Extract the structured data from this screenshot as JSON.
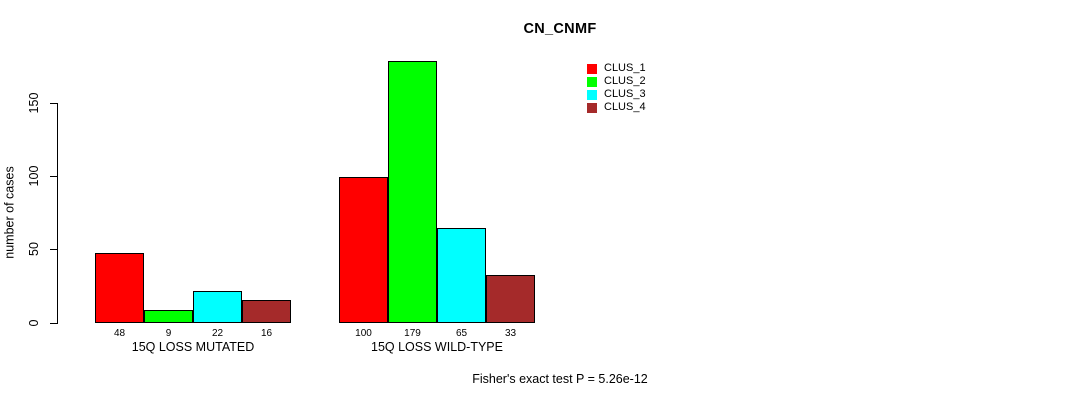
{
  "title": "CN_CNMF",
  "footer": "Fisher's exact test P = 5.26e-12",
  "y_axis": {
    "label": "number of cases",
    "ticks": [
      0,
      50,
      100,
      150
    ]
  },
  "legend": {
    "items": [
      {
        "label": "CLUS_1",
        "color": "#ff0000"
      },
      {
        "label": "CLUS_2",
        "color": "#00ff00"
      },
      {
        "label": "CLUS_3",
        "color": "#00ffff"
      },
      {
        "label": "CLUS_4",
        "color": "#a52a2a"
      }
    ]
  },
  "chart_data": {
    "type": "bar",
    "title": "CN_CNMF",
    "categories": [
      "15Q LOSS MUTATED",
      "15Q LOSS WILD-TYPE"
    ],
    "series": [
      {
        "name": "CLUS_1",
        "color": "#ff0000",
        "values": [
          48,
          100
        ]
      },
      {
        "name": "CLUS_2",
        "color": "#00ff00",
        "values": [
          9,
          179
        ]
      },
      {
        "name": "CLUS_3",
        "color": "#00ffff",
        "values": [
          22,
          65
        ]
      },
      {
        "name": "CLUS_4",
        "color": "#a52a2a",
        "values": [
          16,
          33
        ]
      }
    ],
    "xlabel": "",
    "ylabel": "number of cases",
    "ylim": [
      0,
      179
    ],
    "y_ticks": [
      0,
      50,
      100,
      150
    ],
    "bar_value_labels": true,
    "grid": false,
    "legend_position": "top-right",
    "annotation": "Fisher's exact test P = 5.26e-12"
  }
}
